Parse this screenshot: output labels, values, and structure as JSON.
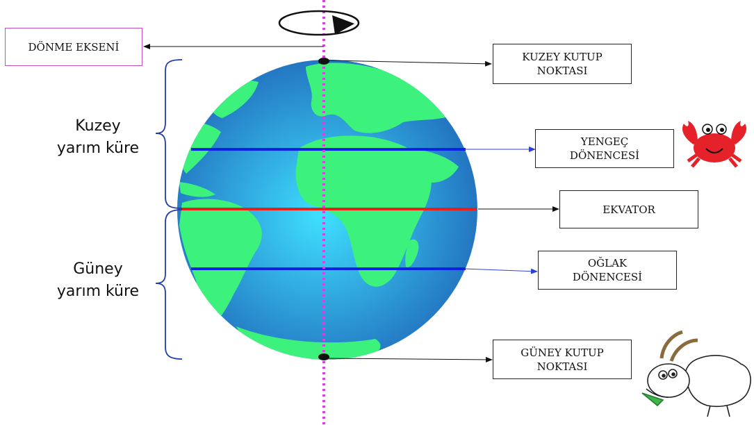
{
  "labels": {
    "axis": "DÖNME EKSENİ",
    "north_pole": "KUZEY KUTUP\nNOKTASI",
    "cancer": "YENGEÇ\nDÖNENCESİ",
    "equator": "EKVATOR",
    "capricorn": "OĞLAK\nDÖNENCESİ",
    "south_pole": "GÜNEY KUTUP\nNOKTASI"
  },
  "hemispheres": {
    "north": "Kuzey\nyarım küre",
    "south": "Güney\nyarım küre"
  },
  "icons": [
    "rotation-arrow-icon",
    "crab-icon",
    "goat-icon",
    "globe-icon"
  ],
  "colors": {
    "ocean_center": "#3fe0ff",
    "ocean_edge": "#1f66b8",
    "land": "#3cf27d",
    "tropic_line": "#0a21e6",
    "equator_line": "#e8201a",
    "axis_line": "#e13be8",
    "brace": "#1f3ea8",
    "pointer_tropic": "#2a43d6",
    "crab": "#e5222a"
  }
}
